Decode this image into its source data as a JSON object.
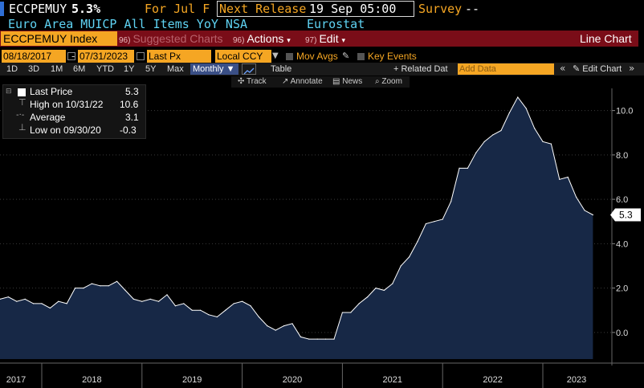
{
  "header": {
    "ticker": "ECCPEMUY",
    "last_value": "5.3%",
    "for_period": "For Jul F",
    "next_release_label": "Next Release",
    "next_release_value": "19 Sep 05:00",
    "survey_label": "Survey",
    "survey_value": "--",
    "description": "Euro Area MUICP All Items YoY NSA",
    "source": "Eurostat"
  },
  "menubar": {
    "security": "ECCPEMUY Index",
    "suggested_num": "96)",
    "suggested_label": "Suggested Charts",
    "actions_num": "96)",
    "actions_label": "Actions",
    "edit_num": "97)",
    "edit_label": "Edit",
    "chart_type_label": "Line Chart"
  },
  "controls": {
    "start_date": "08/18/2017",
    "end_date": "07/31/2023",
    "price_field": "Last Px",
    "currency": "Local CCY",
    "mov_avgs": "Mov Avgs",
    "key_events": "Key Events",
    "periods": [
      "1D",
      "3D",
      "1M",
      "6M",
      "YTD",
      "1Y",
      "5Y",
      "Max"
    ],
    "frequency": "Monthly",
    "table_label": "Table",
    "related_data": "+ Related Dat",
    "add_data_placeholder": "Add Data",
    "edit_chart": "Edit Chart"
  },
  "toolbar": {
    "track": "Track",
    "annotate": "Annotate",
    "news": "News",
    "zoom": "Zoom"
  },
  "legend": {
    "last_label": "Last Price",
    "last_value": "5.3",
    "high_label": "High on 10/31/22",
    "high_value": "10.6",
    "avg_label": "Average",
    "avg_value": "3.1",
    "low_label": "Low on 09/30/20",
    "low_value": "-0.3"
  },
  "colors": {
    "background": "#000000",
    "area_fill": "#172846",
    "line": "#ffffff",
    "accent_orange": "#f5a623",
    "menubar_red": "#7a0d18",
    "title_cyan": "#5fd3f3"
  },
  "chart_data": {
    "type": "area",
    "series": [
      {
        "name": "Last Price",
        "x": [
          "2017-08",
          "2017-09",
          "2017-10",
          "2017-11",
          "2017-12",
          "2018-01",
          "2018-02",
          "2018-03",
          "2018-04",
          "2018-05",
          "2018-06",
          "2018-07",
          "2018-08",
          "2018-09",
          "2018-10",
          "2018-11",
          "2018-12",
          "2019-01",
          "2019-02",
          "2019-03",
          "2019-04",
          "2019-05",
          "2019-06",
          "2019-07",
          "2019-08",
          "2019-09",
          "2019-10",
          "2019-11",
          "2019-12",
          "2020-01",
          "2020-02",
          "2020-03",
          "2020-04",
          "2020-05",
          "2020-06",
          "2020-07",
          "2020-08",
          "2020-09",
          "2020-10",
          "2020-11",
          "2020-12",
          "2021-01",
          "2021-02",
          "2021-03",
          "2021-04",
          "2021-05",
          "2021-06",
          "2021-07",
          "2021-08",
          "2021-09",
          "2021-10",
          "2021-11",
          "2021-12",
          "2022-01",
          "2022-02",
          "2022-03",
          "2022-04",
          "2022-05",
          "2022-06",
          "2022-07",
          "2022-08",
          "2022-09",
          "2022-10",
          "2022-11",
          "2022-12",
          "2023-01",
          "2023-02",
          "2023-03",
          "2023-04",
          "2023-05",
          "2023-06",
          "2023-07"
        ],
        "values": [
          1.5,
          1.6,
          1.4,
          1.5,
          1.3,
          1.3,
          1.1,
          1.4,
          1.3,
          2.0,
          2.0,
          2.2,
          2.1,
          2.1,
          2.3,
          1.9,
          1.5,
          1.4,
          1.5,
          1.4,
          1.7,
          1.2,
          1.3,
          1.0,
          1.0,
          0.8,
          0.7,
          1.0,
          1.3,
          1.4,
          1.2,
          0.7,
          0.3,
          0.1,
          0.3,
          0.4,
          -0.2,
          -0.3,
          -0.3,
          -0.3,
          -0.3,
          0.9,
          0.9,
          1.3,
          1.6,
          2.0,
          1.9,
          2.2,
          3.0,
          3.4,
          4.1,
          4.9,
          5.0,
          5.1,
          5.9,
          7.4,
          7.4,
          8.1,
          8.6,
          8.9,
          9.1,
          9.9,
          10.6,
          10.1,
          9.2,
          8.6,
          8.5,
          6.9,
          7.0,
          6.1,
          5.5,
          5.3
        ]
      }
    ],
    "ylim": [
      -1.2,
      11.0
    ],
    "yticks": [
      "0.0",
      "2.0",
      "4.0",
      "6.0",
      "8.0",
      "10.0"
    ],
    "xticks": [
      "2017",
      "2018",
      "2019",
      "2020",
      "2021",
      "2022",
      "2023"
    ],
    "last_label": "5.3",
    "grid": true,
    "legend_position": "top-left"
  }
}
